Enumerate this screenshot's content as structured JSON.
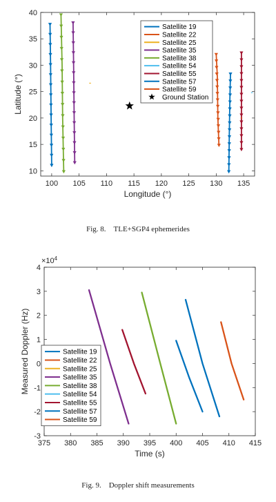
{
  "figures": [
    {
      "caption_label": "Fig. 8.",
      "caption_text": "TLE+SGP4 ephemerides"
    },
    {
      "caption_label": "Fig. 9.",
      "caption_text": "Doppler shift measurements"
    }
  ],
  "colors": {
    "Satellite 19": "#0072BD",
    "Satellite 22": "#D95319",
    "Satellite 25": "#EDB120",
    "Satellite 35": "#7E2F8E",
    "Satellite 38": "#77AC30",
    "Satellite 54": "#4DBEEE",
    "Satellite 55": "#A2142F",
    "Satellite 57": "#0072BD",
    "Satellite 59": "#D95319",
    "Ground Station": "#000000"
  },
  "chart_data": [
    {
      "type": "line",
      "xlabel": "Longitude (°)",
      "ylabel": "Latitude (°)",
      "xlim": [
        98,
        137
      ],
      "ylim": [
        9,
        40
      ],
      "xticks": [
        100,
        105,
        110,
        115,
        120,
        125,
        130,
        135
      ],
      "yticks": [
        10,
        15,
        20,
        25,
        30,
        35,
        40
      ],
      "grid": false,
      "legend_position": "top-right",
      "legend": [
        "Satellite 19",
        "Satellite 22",
        "Satellite 25",
        "Satellite 35",
        "Satellite 38",
        "Satellite 54",
        "Satellite 55",
        "Satellite 57",
        "Satellite 59",
        "Ground Station"
      ],
      "series": [
        {
          "name": "Satellite 19",
          "x": [
            100.0,
            99.9,
            99.8,
            99.7
          ],
          "y": [
            11.0,
            20.0,
            30.0,
            37.7
          ],
          "marker": "arrow"
        },
        {
          "name": "Satellite 22",
          "x": [
            130.5,
            130.3,
            130.2,
            130.0
          ],
          "y": [
            14.8,
            20.0,
            28.0,
            32.0
          ],
          "marker": "arrow"
        },
        {
          "name": "Satellite 25",
          "x": [
            107.0
          ],
          "y": [
            26.6
          ],
          "marker": "none"
        },
        {
          "name": "Satellite 35",
          "x": [
            104.2,
            104.1,
            104.0,
            103.9
          ],
          "y": [
            11.5,
            20.0,
            30.0,
            38.0
          ],
          "marker": "arrow"
        },
        {
          "name": "Satellite 38",
          "x": [
            102.2,
            102.0,
            101.9,
            101.7
          ],
          "y": [
            9.8,
            20.0,
            30.0,
            39.5
          ],
          "marker": "arrow"
        },
        {
          "name": "Satellite 54",
          "x": [
            136.5
          ],
          "y": [
            24.8
          ],
          "marker": "none"
        },
        {
          "name": "Satellite 55",
          "x": [
            134.6,
            134.6,
            134.6
          ],
          "y": [
            14.0,
            22.0,
            32.3
          ],
          "marker": "arrow"
        },
        {
          "name": "Satellite 57",
          "x": [
            132.3,
            132.4,
            132.5,
            132.6
          ],
          "y": [
            9.8,
            18.0,
            24.0,
            28.3
          ],
          "marker": "arrow"
        },
        {
          "name": "Satellite 59",
          "x": [
            134.6
          ],
          "y": [
            20.0
          ],
          "marker": "none"
        },
        {
          "name": "Ground Station",
          "x": [
            114.2
          ],
          "y": [
            22.3
          ],
          "marker": "star"
        }
      ]
    },
    {
      "type": "line",
      "xlabel": "Time (s)",
      "ylabel": "Measured Doppler (Hz)",
      "exponent_label": "×10",
      "exponent": "4",
      "xlim": [
        375,
        415
      ],
      "ylim": [
        -3,
        4
      ],
      "xticks": [
        375,
        380,
        385,
        390,
        395,
        400,
        405,
        410,
        415
      ],
      "yticks": [
        -3,
        -2,
        -1,
        0,
        1,
        2,
        3,
        4
      ],
      "grid": false,
      "legend_position": "bottom-left",
      "legend": [
        "Satellite 19",
        "Satellite 22",
        "Satellite 25",
        "Satellite 35",
        "Satellite 38",
        "Satellite 54",
        "Satellite 55",
        "Satellite 57",
        "Satellite 59"
      ],
      "series": [
        {
          "name": "Satellite 19",
          "x": [
            400.0,
            402.5,
            405.0
          ],
          "y": [
            0.95,
            -0.6,
            -2.0
          ]
        },
        {
          "name": "Satellite 22",
          "x": [
            408.5,
            410.5,
            412.8
          ],
          "y": [
            1.72,
            0.0,
            -1.5
          ]
        },
        {
          "name": "Satellite 35",
          "x": [
            383.5,
            387.5,
            391.0
          ],
          "y": [
            3.05,
            0.0,
            -2.5
          ]
        },
        {
          "name": "Satellite 38",
          "x": [
            393.5,
            397.0,
            400.0
          ],
          "y": [
            2.95,
            0.0,
            -2.5
          ]
        },
        {
          "name": "Satellite 55",
          "x": [
            389.8,
            392.0,
            394.2
          ],
          "y": [
            1.4,
            0.0,
            -1.25
          ]
        },
        {
          "name": "Satellite 57",
          "x": [
            401.8,
            405.0,
            408.2
          ],
          "y": [
            2.65,
            0.0,
            -2.2
          ]
        }
      ]
    }
  ]
}
